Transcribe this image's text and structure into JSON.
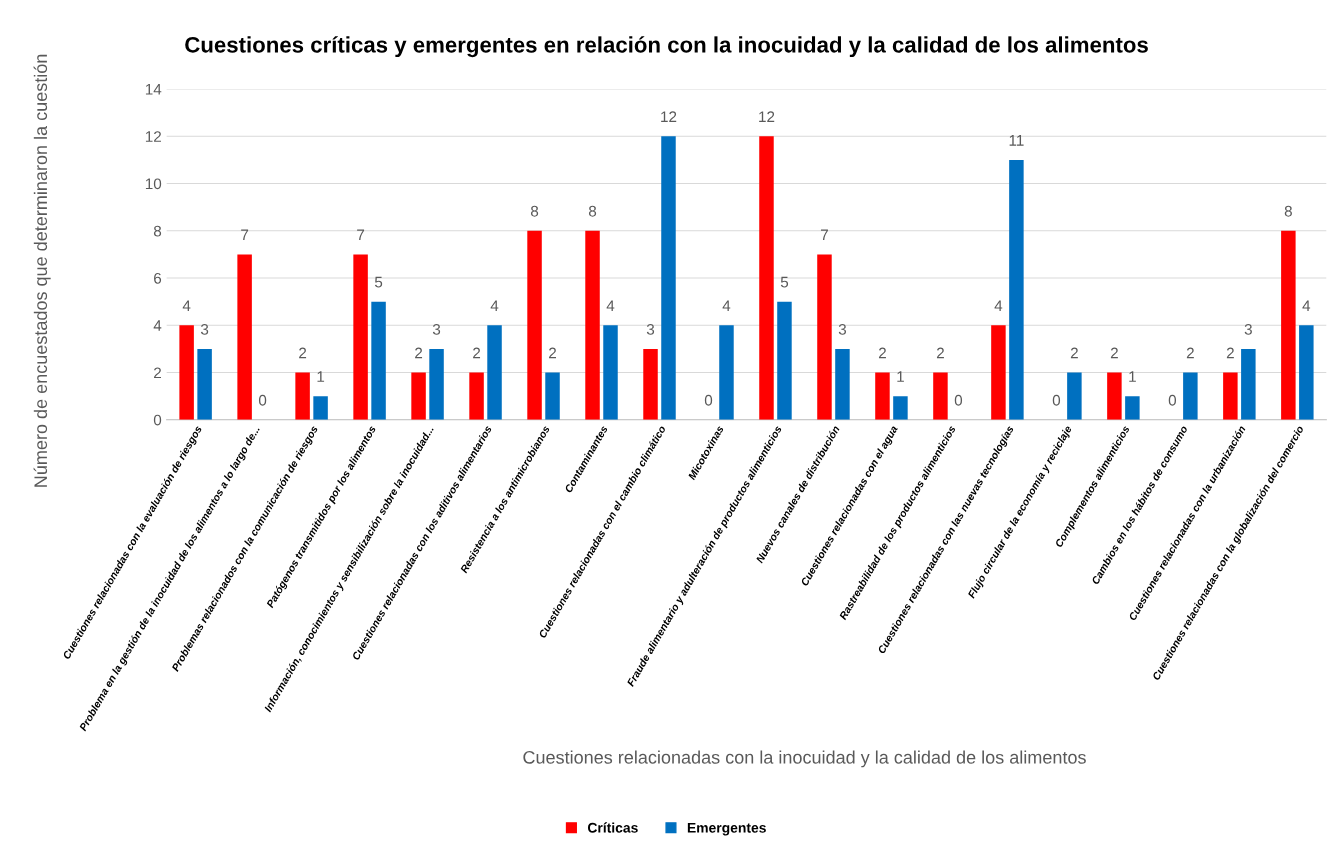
{
  "chart_data": {
    "type": "bar",
    "title": "Cuestiones críticas y emergentes en relación con la inocuidad y la calidad de los alimentos",
    "xlabel": "Cuestiones relacionadas con la inocuidad y la calidad de los alimentos",
    "ylabel": "Número de encuestados que determinaron la cuestión",
    "categories": [
      "Cuestiones relacionadas con la evaluación de riesgos",
      "Problema en la gestión de la inocuidad de los alimentos a lo largo de...",
      "Problemas relacionados con la comunicación de riesgos",
      "Patógenos transmitidos por los alimentos",
      "Información, conocimientos y sensibilización sobre la inocuidad...",
      "Cuestiones relacionadas con los aditivos alimentarios",
      "Resistencia a los antimicrobianos",
      "Contaminantes",
      "Cuestiones relacionadas con el cambio climático",
      "Micotoxinas",
      "Fraude alimentario y adulteración de productos alimenticios",
      "Nuevos canales de distribución",
      "Cuestiones relacionadas con el agua",
      "Rastreabilidad de los productos alimenticios",
      "Cuestiones relacionadas con las nuevas tecnologías",
      "Flujo circular de la economía y reciclaje",
      "Complementos alimenticios",
      "Cambios en los hábitos de consumo",
      "Cuestiones relacionadas con la urbanización",
      "Cuestiones relacionadas con la globalización del comercio"
    ],
    "series": [
      {
        "name": "Críticas",
        "color": "#ff0000",
        "values": [
          4,
          7,
          2,
          7,
          2,
          2,
          8,
          8,
          3,
          0,
          12,
          7,
          2,
          2,
          4,
          0,
          2,
          0,
          2,
          8
        ]
      },
      {
        "name": "Emergentes",
        "color": "#0070c0",
        "values": [
          3,
          0,
          1,
          5,
          3,
          4,
          2,
          4,
          12,
          4,
          5,
          3,
          1,
          0,
          11,
          2,
          1,
          2,
          3,
          4
        ]
      }
    ],
    "ylim": [
      0,
      14
    ],
    "yticks": [
      0,
      2,
      4,
      6,
      8,
      10,
      12,
      14
    ],
    "grid": "y",
    "legend": "bottom",
    "data_labels": true
  }
}
